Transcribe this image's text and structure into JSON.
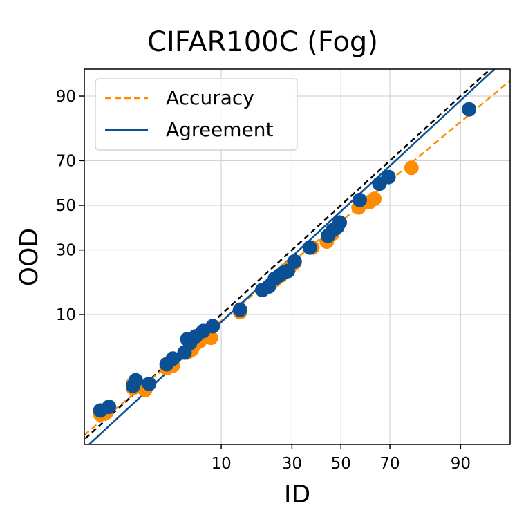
{
  "chart_data": {
    "type": "scatter",
    "title": "CIFAR100C (Fog)",
    "xlabel": "ID",
    "ylabel": "OOD",
    "scale": "probit",
    "xlim": [
      0.3,
      96.5
    ],
    "ylim": [
      0.25,
      94.5
    ],
    "xticks": [
      10,
      30,
      50,
      70,
      90
    ],
    "yticks": [
      10,
      30,
      50,
      70,
      90
    ],
    "grid": true,
    "legend_position": "top-left",
    "legend": [
      {
        "label": "Accuracy",
        "style": "dashed",
        "color": "#ff8c00"
      },
      {
        "label": "Agreement",
        "style": "solid",
        "color": "#0b4f94"
      }
    ],
    "diagonal": {
      "style": "dashed",
      "color": "#000000"
    },
    "colors": {
      "accuracy": "#ff8c00",
      "agreement": "#0b4f94",
      "diagonal": "#000000",
      "grid": "#d3d3d3"
    },
    "series": [
      {
        "name": "Accuracy",
        "color": "#ff8c00",
        "fit": {
          "slope": 0.912,
          "intercept": -0.19
        },
        "points": [
          [
            0.5,
            0.7
          ],
          [
            0.6,
            0.75
          ],
          [
            1.3,
            1.6
          ],
          [
            1.3,
            1.8
          ],
          [
            1.8,
            1.5
          ],
          [
            3.1,
            2.8
          ],
          [
            3.6,
            3.0
          ],
          [
            5.0,
            4.2
          ],
          [
            5.5,
            4.5
          ],
          [
            5.8,
            5.0
          ],
          [
            6.5,
            5.5
          ],
          [
            8.2,
            6.0
          ],
          [
            14.0,
            10.5
          ],
          [
            20.0,
            16.0
          ],
          [
            24.0,
            19.0
          ],
          [
            26.0,
            20.5
          ],
          [
            27.0,
            21.5
          ],
          [
            28.0,
            22.5
          ],
          [
            29.0,
            23.0
          ],
          [
            31.0,
            25.0
          ],
          [
            38.0,
            31.0
          ],
          [
            44.0,
            33.5
          ],
          [
            46.5,
            37.0
          ],
          [
            57.5,
            49.0
          ],
          [
            62.0,
            51.5
          ],
          [
            64.0,
            53.0
          ],
          [
            77.5,
            67.0
          ]
        ]
      },
      {
        "name": "Agreement",
        "color": "#0b4f94",
        "fit": {
          "slope": 1.015,
          "intercept": -0.07
        },
        "points": [
          [
            0.5,
            0.8
          ],
          [
            0.65,
            0.9
          ],
          [
            1.3,
            1.7
          ],
          [
            1.4,
            2.0
          ],
          [
            2.0,
            1.8
          ],
          [
            3.1,
            3.1
          ],
          [
            3.6,
            3.6
          ],
          [
            4.7,
            4.2
          ],
          [
            5.0,
            5.8
          ],
          [
            5.3,
            5.3
          ],
          [
            6.0,
            6.2
          ],
          [
            7.0,
            7.0
          ],
          [
            8.5,
            7.8
          ],
          [
            14.0,
            11.0
          ],
          [
            20.0,
            16.0
          ],
          [
            22.0,
            17.0
          ],
          [
            24.0,
            19.5
          ],
          [
            25.5,
            20.5
          ],
          [
            27.0,
            21.5
          ],
          [
            28.5,
            22.0
          ],
          [
            31.0,
            25.5
          ],
          [
            37.0,
            31.0
          ],
          [
            44.5,
            36.0
          ],
          [
            46.5,
            38.5
          ],
          [
            48.5,
            40.0
          ],
          [
            49.5,
            42.0
          ],
          [
            58.0,
            52.5
          ],
          [
            66.0,
            60.0
          ],
          [
            69.5,
            63.0
          ],
          [
            91.5,
            87.0
          ]
        ]
      }
    ]
  }
}
